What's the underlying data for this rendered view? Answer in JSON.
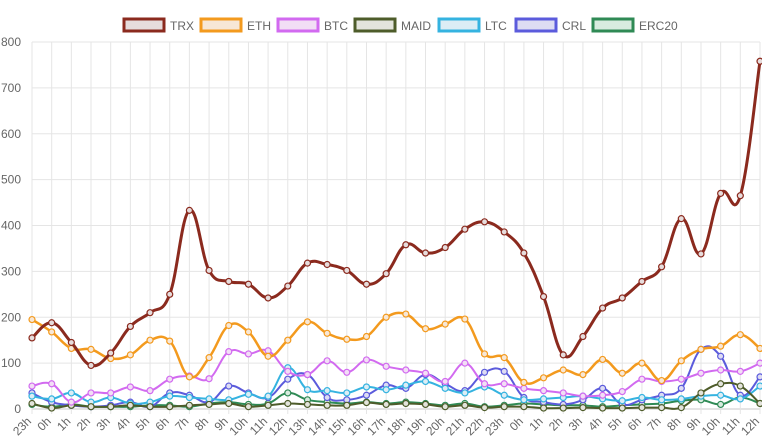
{
  "chart_data": {
    "type": "line",
    "title": "",
    "xlabel": "",
    "ylabel": "",
    "ylim": [
      0,
      800
    ],
    "yticks": [
      0,
      100,
      200,
      300,
      400,
      500,
      600,
      700,
      800
    ],
    "grid": true,
    "legend_position": "top",
    "categories": [
      "23h",
      "0h",
      "1h",
      "2h",
      "3h",
      "4h",
      "5h",
      "6h",
      "7h",
      "8h",
      "9h",
      "10h",
      "11h",
      "12h",
      "13h",
      "14h",
      "15h",
      "16h",
      "17h",
      "18h",
      "19h",
      "20h",
      "21h",
      "22h",
      "23h",
      "0h",
      "1h",
      "2h",
      "3h",
      "4h",
      "5h",
      "6h",
      "7h",
      "8h",
      "9h",
      "10h",
      "11h",
      "12h"
    ],
    "series": [
      {
        "name": "TRX",
        "color": "#8b2a1e",
        "fill": "#e6dcdc",
        "width": 3,
        "values": [
          155,
          188,
          145,
          95,
          122,
          180,
          210,
          250,
          433,
          302,
          278,
          272,
          242,
          268,
          318,
          315,
          302,
          272,
          295,
          358,
          340,
          352,
          392,
          408,
          386,
          340,
          245,
          118,
          158,
          220,
          242,
          278,
          310,
          415,
          338,
          470,
          465,
          758
        ]
      },
      {
        "name": "ETH",
        "color": "#f39a1e",
        "fill": "#f7e7d6",
        "width": 2.5,
        "values": [
          195,
          168,
          132,
          130,
          110,
          118,
          150,
          148,
          70,
          112,
          182,
          168,
          115,
          150,
          190,
          165,
          152,
          158,
          200,
          207,
          175,
          185,
          196,
          120,
          112,
          58,
          68,
          85,
          75,
          108,
          78,
          100,
          62,
          105,
          130,
          137,
          162,
          132
        ]
      },
      {
        "name": "BTC",
        "color": "#d26af0",
        "fill": "#f2def5",
        "width": 2,
        "values": [
          50,
          55,
          15,
          35,
          35,
          48,
          40,
          65,
          72,
          66,
          125,
          120,
          127,
          82,
          75,
          105,
          80,
          107,
          93,
          85,
          78,
          60,
          100,
          55,
          55,
          45,
          40,
          35,
          28,
          30,
          38,
          65,
          60,
          65,
          78,
          85,
          82,
          100
        ]
      },
      {
        "name": "MAID",
        "color": "#4e5c2a",
        "fill": "#e3e4dc",
        "width": 2,
        "values": [
          12,
          2,
          8,
          5,
          5,
          8,
          5,
          5,
          8,
          10,
          12,
          5,
          8,
          12,
          10,
          8,
          8,
          14,
          10,
          12,
          10,
          5,
          8,
          3,
          5,
          5,
          2,
          2,
          3,
          2,
          2,
          3,
          3,
          3,
          35,
          55,
          50,
          12
        ]
      },
      {
        "name": "LTC",
        "color": "#35b3e0",
        "fill": "#dcedf5",
        "width": 2,
        "values": [
          28,
          22,
          35,
          15,
          25,
          12,
          15,
          28,
          25,
          22,
          20,
          32,
          28,
          90,
          42,
          40,
          35,
          48,
          42,
          52,
          60,
          45,
          35,
          48,
          30,
          20,
          22,
          25,
          28,
          22,
          18,
          25,
          20,
          22,
          28,
          30,
          22,
          50
        ]
      },
      {
        "name": "CRL",
        "color": "#5b5bdc",
        "fill": "#dddcf3",
        "width": 2,
        "values": [
          35,
          15,
          8,
          5,
          8,
          15,
          5,
          35,
          30,
          15,
          50,
          35,
          25,
          65,
          75,
          25,
          20,
          30,
          52,
          45,
          75,
          55,
          40,
          80,
          82,
          25,
          15,
          10,
          20,
          45,
          10,
          20,
          30,
          45,
          130,
          115,
          30,
          70
        ]
      },
      {
        "name": "ERC20",
        "color": "#2f8a55",
        "fill": "#d8ebdf",
        "width": 2,
        "values": [
          10,
          5,
          10,
          5,
          5,
          5,
          8,
          8,
          5,
          12,
          15,
          10,
          12,
          35,
          20,
          15,
          12,
          15,
          12,
          15,
          12,
          8,
          12,
          5,
          8,
          12,
          10,
          8,
          8,
          5,
          8,
          10,
          12,
          18,
          20,
          10,
          25,
          12
        ]
      }
    ]
  }
}
